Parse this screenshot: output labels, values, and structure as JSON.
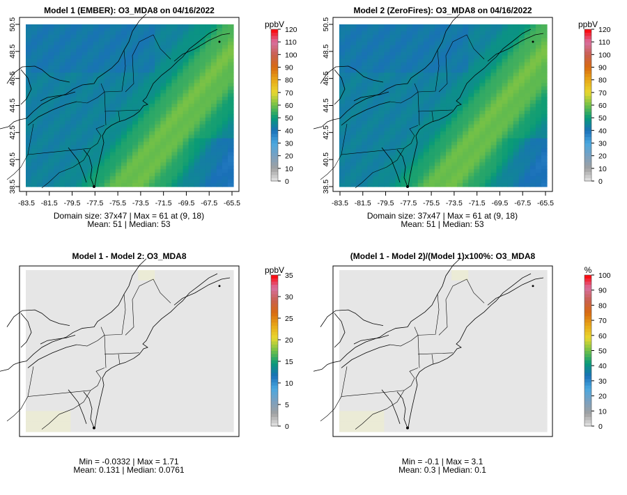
{
  "chart_data": [
    {
      "type": "heatmap",
      "title": "Model 1 (EMBER): O3_MDA8 on 04/16/2022",
      "x_ticks": [
        "-83.5",
        "-81.5",
        "-79.5",
        "-77.5",
        "-75.5",
        "-73.5",
        "-71.5",
        "-69.5",
        "-67.5",
        "-65.5"
      ],
      "y_ticks": [
        "38.5",
        "40.5",
        "42.5",
        "44.5",
        "46.5",
        "48.5",
        "50.5"
      ],
      "colorbar": {
        "unit": "ppbV",
        "ticks": [
          "0",
          "10",
          "20",
          "30",
          "40",
          "50",
          "60",
          "70",
          "80",
          "90",
          "100",
          "110",
          "120"
        ],
        "range": [
          0,
          120
        ]
      },
      "field": {
        "kind": "ozone",
        "min": 40,
        "max": 61,
        "mean": 51
      },
      "stats_line1": "Domain size: 37x47 | Max = 61 at (9, 18)",
      "stats_line2": "Mean: 51 |  Median: 53"
    },
    {
      "type": "heatmap",
      "title": "Model 2 (ZeroFires): O3_MDA8 on 04/16/2022",
      "x_ticks": [
        "-83.5",
        "-81.5",
        "-79.5",
        "-77.5",
        "-75.5",
        "-73.5",
        "-71.5",
        "-69.5",
        "-67.5",
        "-65.5"
      ],
      "y_ticks": [
        "38.5",
        "40.5",
        "42.5",
        "44.5",
        "46.5",
        "48.5",
        "50.5"
      ],
      "colorbar": {
        "unit": "ppbV",
        "ticks": [
          "0",
          "10",
          "20",
          "30",
          "40",
          "50",
          "60",
          "70",
          "80",
          "90",
          "100",
          "110",
          "120"
        ],
        "range": [
          0,
          120
        ]
      },
      "field": {
        "kind": "ozone",
        "min": 40,
        "max": 61,
        "mean": 51
      },
      "stats_line1": "Domain size: 37x47 | Max = 61 at (9, 18)",
      "stats_line2": "Mean: 51 |  Median: 53"
    },
    {
      "type": "heatmap",
      "title": "Model 1 - Model 2: O3_MDA8",
      "colorbar": {
        "unit": "ppbV",
        "ticks": [
          "0",
          "5",
          "10",
          "15",
          "20",
          "25",
          "30",
          "35"
        ],
        "range": [
          0,
          35
        ]
      },
      "field": {
        "kind": "diff",
        "min": -0.0332,
        "max": 1.71
      },
      "stats_line1": "Min = -0.0332 | Max = 1.71",
      "stats_line2": "Mean: 0.131 |  Median: 0.0761"
    },
    {
      "type": "heatmap",
      "title": "(Model 1 - Model 2)/(Model 1)x100%: O3_MDA8",
      "colorbar": {
        "unit": "%",
        "ticks": [
          "0",
          "10",
          "20",
          "30",
          "40",
          "50",
          "60",
          "70",
          "80",
          "90",
          "100"
        ],
        "range": [
          0,
          100
        ]
      },
      "field": {
        "kind": "diff",
        "min": -0.1,
        "max": 3.1
      },
      "stats_line1": "Min = -0.1 | Max = 3.1",
      "stats_line2": "Mean: 0.3 |  Median: 0.1"
    }
  ],
  "colors": {
    "scale": [
      "#e6e6e6",
      "#a0a0a0",
      "#7aa0c0",
      "#4aa8e0",
      "#1a70b8",
      "#089a78",
      "#70c048",
      "#e8d830",
      "#e8a818",
      "#d86a10",
      "#c86050",
      "#d870a0",
      "#ff0000"
    ]
  }
}
